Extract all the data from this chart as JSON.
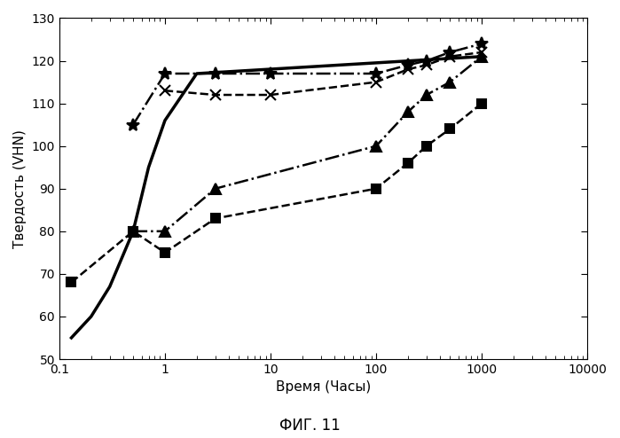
{
  "title": "ФИГ. 11",
  "xlabel": "Время (Часы)",
  "ylabel": "Твердость (VHN)",
  "ylim": [
    50,
    130
  ],
  "xlim": [
    0.1,
    10000
  ],
  "series": [
    {
      "label": "solid",
      "x": [
        0.13,
        0.2,
        0.3,
        0.5,
        0.7,
        1.0,
        2.0,
        1000
      ],
      "y": [
        55,
        60,
        67,
        80,
        95,
        106,
        117,
        121
      ],
      "color": "black",
      "linestyle": "-",
      "marker": null,
      "linewidth": 2.5,
      "markersize": 6
    },
    {
      "label": "star_dashdot",
      "x": [
        0.5,
        1.0,
        3.0,
        10,
        100,
        200,
        300,
        500,
        1000
      ],
      "y": [
        105,
        117,
        117,
        117,
        117,
        119,
        120,
        122,
        124
      ],
      "color": "black",
      "linestyle": "-.",
      "marker": "*",
      "linewidth": 1.8,
      "markersize": 10
    },
    {
      "label": "x_dashed",
      "x": [
        1.0,
        3.0,
        10,
        100,
        200,
        300,
        500,
        1000
      ],
      "y": [
        113,
        112,
        112,
        115,
        118,
        119,
        121,
        122
      ],
      "color": "black",
      "linestyle": "--",
      "marker": "x",
      "linewidth": 1.8,
      "markersize": 9
    },
    {
      "label": "triangle_dashdot",
      "x": [
        0.5,
        1.0,
        3.0,
        100,
        200,
        300,
        500,
        1000
      ],
      "y": [
        80,
        80,
        90,
        100,
        108,
        112,
        115,
        121
      ],
      "color": "black",
      "linestyle": "-.",
      "marker": "^",
      "linewidth": 1.8,
      "markersize": 8
    },
    {
      "label": "square_dashed",
      "x": [
        0.13,
        0.5,
        1.0,
        3.0,
        100,
        200,
        300,
        500,
        1000
      ],
      "y": [
        68,
        80,
        75,
        83,
        90,
        96,
        100,
        104,
        110
      ],
      "color": "black",
      "linestyle": "--",
      "marker": "s",
      "linewidth": 1.8,
      "markersize": 7
    }
  ]
}
